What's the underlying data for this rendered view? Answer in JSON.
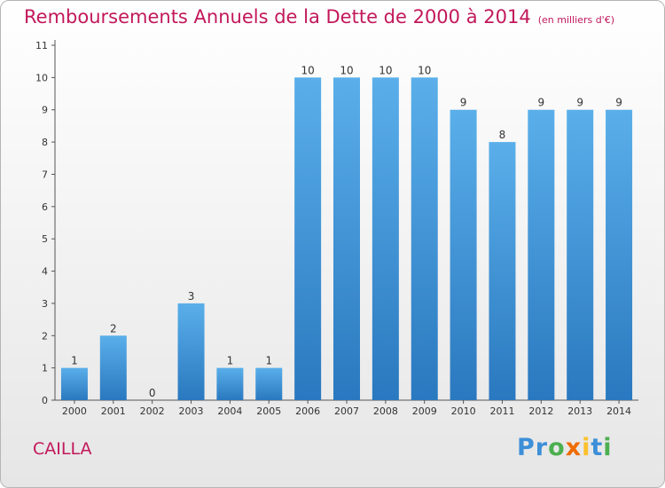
{
  "header": {
    "title": "Remboursements Annuels de la Dette de 2000 à 2014",
    "unit": "(en milliers d'€)"
  },
  "footer": {
    "commune": "CAILLA",
    "logo_letters": [
      "P",
      "r",
      "o",
      "x",
      "i",
      "t",
      "i"
    ]
  },
  "chart_data": {
    "type": "bar",
    "title": "Remboursements Annuels de la Dette de 2000 à 2014",
    "unit": "(en milliers d'€)",
    "categories": [
      "2000",
      "2001",
      "2002",
      "2003",
      "2004",
      "2005",
      "2006",
      "2007",
      "2008",
      "2009",
      "2010",
      "2011",
      "2012",
      "2013",
      "2014"
    ],
    "values": [
      1,
      2,
      0,
      3,
      1,
      1,
      10,
      10,
      10,
      10,
      9,
      8,
      9,
      9,
      9
    ],
    "ylim": [
      0,
      11
    ],
    "yticks": [
      0,
      1,
      2,
      3,
      4,
      5,
      6,
      7,
      8,
      9,
      10,
      11
    ],
    "grid": false,
    "bar_color": "#4a9fe0"
  }
}
